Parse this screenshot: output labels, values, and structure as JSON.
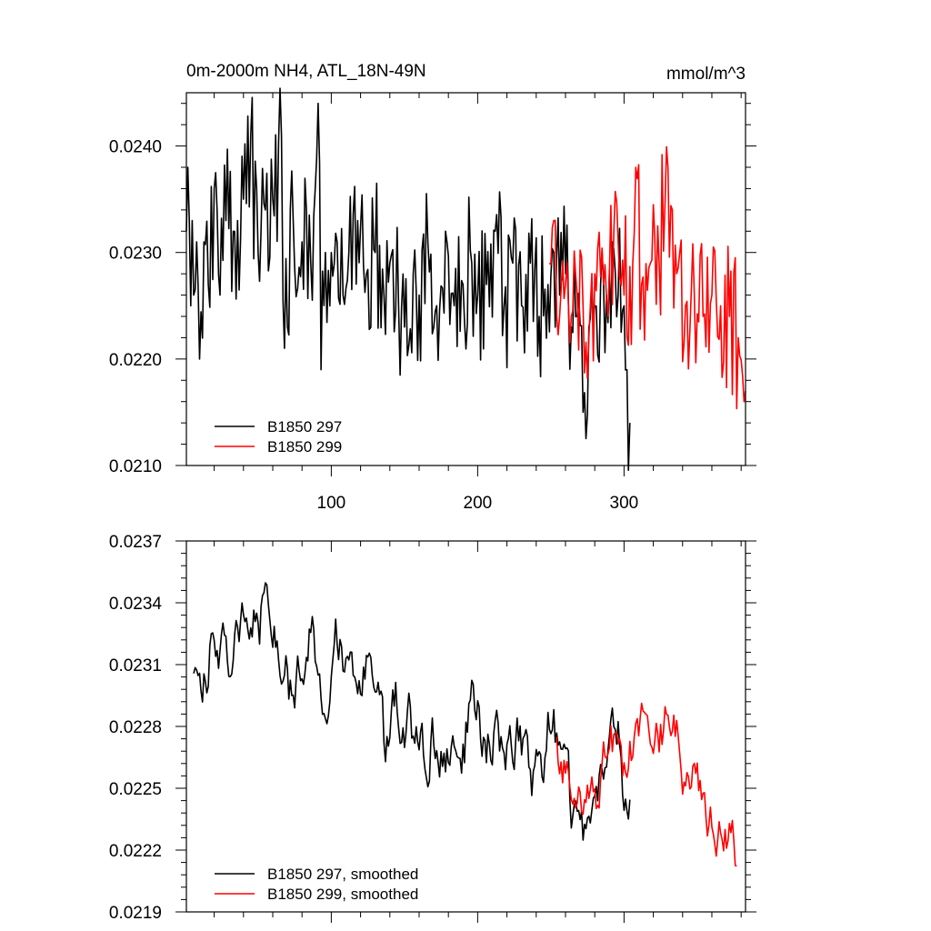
{
  "chart_data": [
    {
      "type": "line",
      "title": "0m-2000m NH4, ATL_18N-49N",
      "units": "mmol/m^3",
      "xlim": [
        1,
        383
      ],
      "ylim": [
        0.021,
        0.0245
      ],
      "xticks": [
        100,
        200,
        300
      ],
      "xtick_labels": [
        "100",
        "200",
        "300"
      ],
      "yticks": [
        0.021,
        0.022,
        0.023,
        0.024
      ],
      "ytick_labels": [
        "0.0210",
        "0.0220",
        "0.0230",
        "0.0240"
      ],
      "legend": "bottom-left",
      "series": [
        {
          "name": "B1850 297",
          "color": "#000000",
          "x": [
            1,
            304
          ],
          "anchors": [
            [
              1,
              0.0232
            ],
            [
              2,
              0.0238
            ],
            [
              3,
              0.0233
            ],
            [
              4,
              0.0225
            ],
            [
              5,
              0.0233
            ],
            [
              6,
              0.0226
            ],
            [
              8,
              0.0231
            ],
            [
              10,
              0.022
            ],
            [
              13,
              0.0231
            ],
            [
              16,
              0.0227
            ],
            [
              20,
              0.0236
            ],
            [
              24,
              0.0226
            ],
            [
              28,
              0.0233
            ],
            [
              33,
              0.0232
            ],
            [
              36,
              0.0233
            ],
            [
              40,
              0.0235
            ],
            [
              45,
              0.0241
            ],
            [
              50,
              0.023
            ],
            [
              55,
              0.0234
            ],
            [
              60,
              0.0235
            ],
            [
              66,
              0.0241
            ],
            [
              68,
              0.0221
            ],
            [
              74,
              0.0233
            ],
            [
              80,
              0.0231
            ],
            [
              86,
              0.0229
            ],
            [
              91,
              0.0244
            ],
            [
              93,
              0.0219
            ],
            [
              96,
              0.023
            ],
            [
              100,
              0.023
            ],
            [
              104,
              0.0231
            ],
            [
              108,
              0.0226
            ],
            [
              112,
              0.023
            ],
            [
              118,
              0.0233
            ],
            [
              124,
              0.0228
            ],
            [
              130,
              0.023
            ],
            [
              136,
              0.0226
            ],
            [
              140,
              0.0229
            ],
            [
              146,
              0.0225
            ],
            [
              150,
              0.0223
            ],
            [
              156,
              0.0228
            ],
            [
              160,
              0.0226
            ],
            [
              166,
              0.0231
            ],
            [
              172,
              0.0225
            ],
            [
              178,
              0.0232
            ],
            [
              184,
              0.0225
            ],
            [
              190,
              0.0227
            ],
            [
              196,
              0.0229
            ],
            [
              200,
              0.0226
            ],
            [
              206,
              0.0227
            ],
            [
              212,
              0.0232
            ],
            [
              218,
              0.0225
            ],
            [
              224,
              0.0229
            ],
            [
              230,
              0.0225
            ],
            [
              236,
              0.0229
            ],
            [
              242,
              0.0224
            ],
            [
              248,
              0.0227
            ],
            [
              252,
              0.023
            ],
            [
              256,
              0.0226
            ],
            [
              260,
              0.0228
            ],
            [
              264,
              0.0223
            ],
            [
              268,
              0.0224
            ],
            [
              272,
              0.0215
            ],
            [
              276,
              0.0223
            ],
            [
              280,
              0.0225
            ],
            [
              284,
              0.0227
            ],
            [
              288,
              0.0226
            ],
            [
              292,
              0.0231
            ],
            [
              296,
              0.0226
            ],
            [
              300,
              0.0225
            ],
            [
              302,
              0.0219
            ],
            [
              304,
              0.0214
            ]
          ],
          "noise": 0.00072,
          "seed": 297
        },
        {
          "name": "B1850 299",
          "color": "#ff0000",
          "x": [
            249,
            383
          ],
          "anchors": [
            [
              249,
              0.0229
            ],
            [
              252,
              0.0233
            ],
            [
              256,
              0.0224
            ],
            [
              260,
              0.0227
            ],
            [
              264,
              0.0224
            ],
            [
              268,
              0.0226
            ],
            [
              272,
              0.0225
            ],
            [
              276,
              0.0222
            ],
            [
              280,
              0.0228
            ],
            [
              286,
              0.0227
            ],
            [
              290,
              0.0228
            ],
            [
              296,
              0.0231
            ],
            [
              300,
              0.0226
            ],
            [
              306,
              0.0229
            ],
            [
              308,
              0.0238
            ],
            [
              312,
              0.0227
            ],
            [
              318,
              0.0229
            ],
            [
              324,
              0.0229
            ],
            [
              330,
              0.0238
            ],
            [
              336,
              0.0228
            ],
            [
              342,
              0.0225
            ],
            [
              348,
              0.0226
            ],
            [
              354,
              0.0224
            ],
            [
              360,
              0.0226
            ],
            [
              366,
              0.0225
            ],
            [
              372,
              0.0224
            ],
            [
              378,
              0.0222
            ],
            [
              382,
              0.0216
            ],
            [
              383,
              0.0217
            ]
          ],
          "noise": 0.00072,
          "seed": 299
        }
      ]
    },
    {
      "type": "line",
      "xlim": [
        1,
        383
      ],
      "ylim": [
        0.0219,
        0.0237
      ],
      "xticks": [
        100,
        200,
        300
      ],
      "yticks": [
        0.0219,
        0.0222,
        0.0225,
        0.0228,
        0.0231,
        0.0234,
        0.0237
      ],
      "ytick_labels": [
        "0.0219",
        "0.0222",
        "0.0225",
        "0.0228",
        "0.0231",
        "0.0234",
        "0.0237"
      ],
      "legend": "bottom-left",
      "series": [
        {
          "name": "B1850 297, smoothed",
          "color": "#000000",
          "x": [
            6,
            304
          ],
          "anchors": [
            [
              6,
              0.023
            ],
            [
              8,
              0.0229
            ],
            [
              12,
              0.0229
            ],
            [
              16,
              0.0231
            ],
            [
              20,
              0.0233
            ],
            [
              22,
              0.0233
            ],
            [
              26,
              0.0232
            ],
            [
              30,
              0.0231
            ],
            [
              34,
              0.0232
            ],
            [
              40,
              0.0233
            ],
            [
              45,
              0.0233
            ],
            [
              50,
              0.0233
            ],
            [
              56,
              0.0234
            ],
            [
              60,
              0.0233
            ],
            [
              66,
              0.0231
            ],
            [
              72,
              0.023
            ],
            [
              76,
              0.023
            ],
            [
              80,
              0.0231
            ],
            [
              86,
              0.0233
            ],
            [
              90,
              0.0231
            ],
            [
              96,
              0.023
            ],
            [
              104,
              0.0232
            ],
            [
              110,
              0.023
            ],
            [
              120,
              0.023
            ],
            [
              126,
              0.0231
            ],
            [
              136,
              0.0227
            ],
            [
              140,
              0.0228
            ],
            [
              146,
              0.0229
            ],
            [
              150,
              0.0228
            ],
            [
              156,
              0.0228
            ],
            [
              160,
              0.0227
            ],
            [
              166,
              0.0226
            ],
            [
              172,
              0.0228
            ],
            [
              176,
              0.0227
            ],
            [
              182,
              0.0226
            ],
            [
              190,
              0.0227
            ],
            [
              196,
              0.0229
            ],
            [
              200,
              0.0228
            ],
            [
              208,
              0.0227
            ],
            [
              214,
              0.0228
            ],
            [
              220,
              0.0227
            ],
            [
              226,
              0.0228
            ],
            [
              232,
              0.0226
            ],
            [
              238,
              0.0225
            ],
            [
              244,
              0.0226
            ],
            [
              250,
              0.0229
            ],
            [
              256,
              0.0227
            ],
            [
              262,
              0.0225
            ],
            [
              266,
              0.0223
            ],
            [
              270,
              0.0222
            ],
            [
              276,
              0.0223
            ],
            [
              280,
              0.0225
            ],
            [
              286,
              0.0227
            ],
            [
              292,
              0.0228
            ],
            [
              298,
              0.0227
            ],
            [
              300,
              0.0224
            ],
            [
              304,
              0.0224
            ]
          ],
          "noise": 0.00012,
          "seed": 1297
        },
        {
          "name": "B1850 299, smoothed",
          "color": "#ff0000",
          "x": [
            254,
            377
          ],
          "anchors": [
            [
              254,
              0.0227
            ],
            [
              258,
              0.0226
            ],
            [
              262,
              0.0226
            ],
            [
              266,
              0.0225
            ],
            [
              270,
              0.0224
            ],
            [
              274,
              0.0225
            ],
            [
              278,
              0.0226
            ],
            [
              282,
              0.0225
            ],
            [
              286,
              0.0227
            ],
            [
              290,
              0.0228
            ],
            [
              294,
              0.0227
            ],
            [
              300,
              0.0226
            ],
            [
              306,
              0.0227
            ],
            [
              312,
              0.0228
            ],
            [
              318,
              0.0228
            ],
            [
              324,
              0.0227
            ],
            [
              330,
              0.0229
            ],
            [
              336,
              0.0228
            ],
            [
              340,
              0.0226
            ],
            [
              346,
              0.0226
            ],
            [
              350,
              0.0225
            ],
            [
              356,
              0.0224
            ],
            [
              360,
              0.0223
            ],
            [
              366,
              0.0223
            ],
            [
              370,
              0.0223
            ],
            [
              374,
              0.0224
            ],
            [
              377,
              0.0222
            ]
          ],
          "noise": 0.0001,
          "seed": 1299
        }
      ]
    }
  ]
}
